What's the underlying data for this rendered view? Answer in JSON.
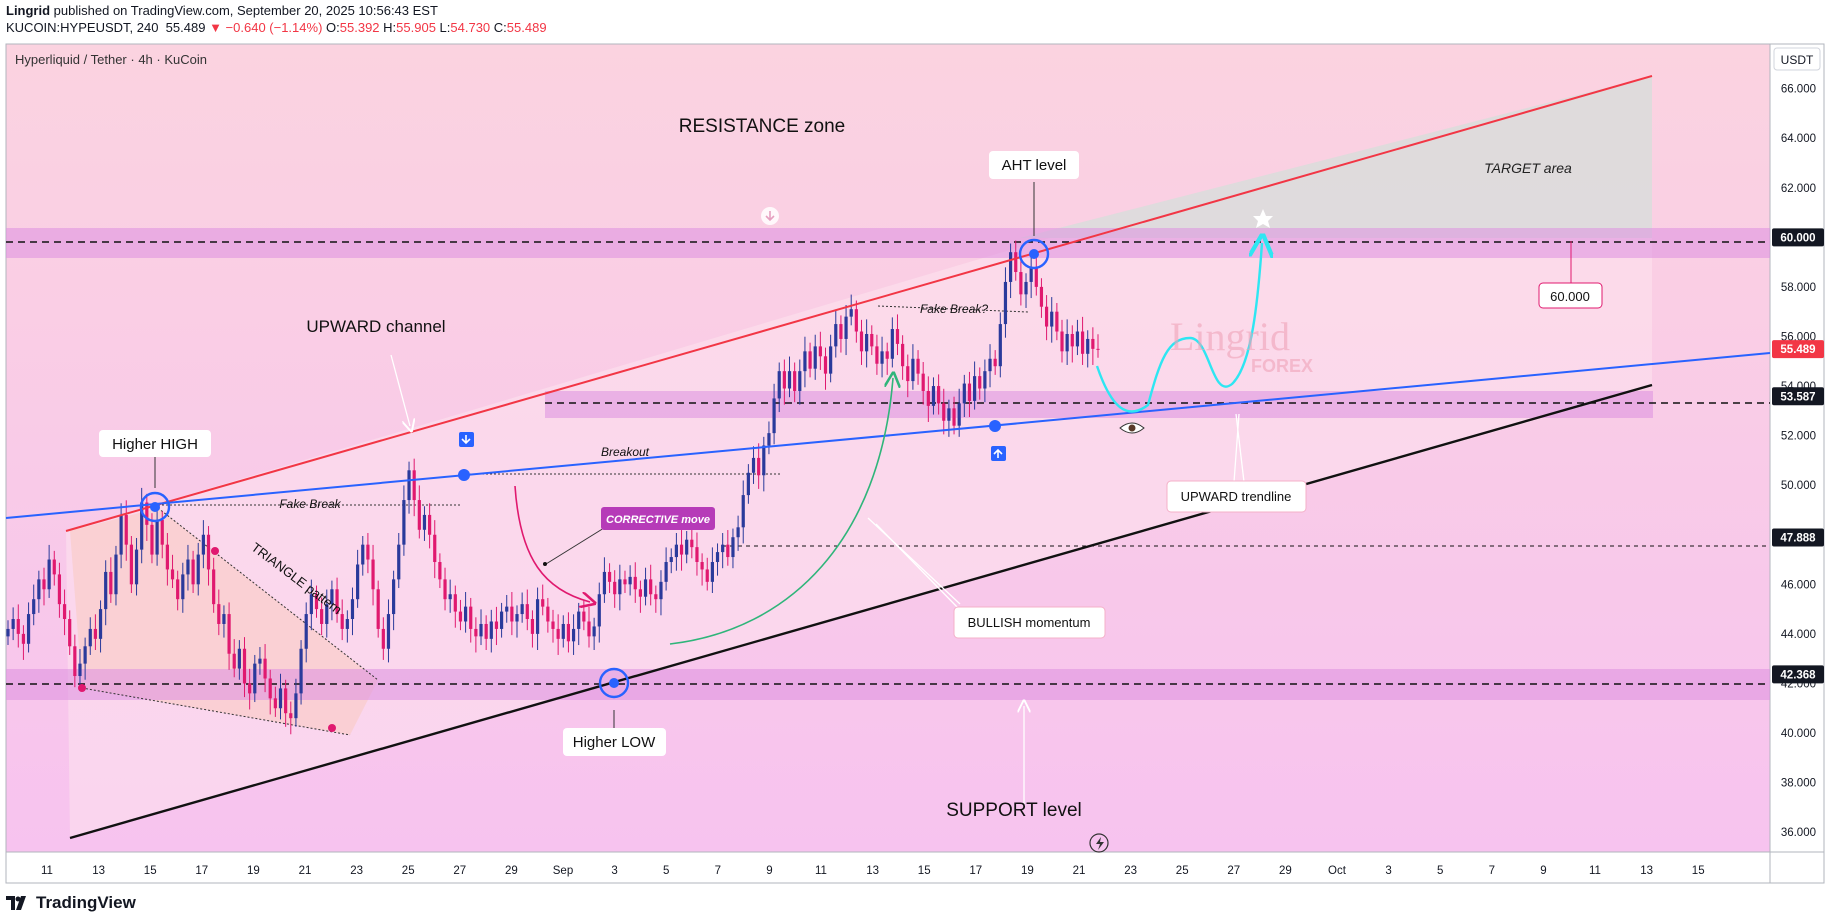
{
  "header": {
    "author": "Lingrid",
    "published": "published on TradingView.com, September 20, 2025 10:56:43 EST",
    "symbol": "KUCOIN:HYPEUSDT, 240",
    "last": "55.489",
    "change": "−0.640 (−1.14%)",
    "o_label": "O:",
    "o": "55.392",
    "h_label": "H:",
    "h": "55.905",
    "l_label": "L:",
    "l": "54.730",
    "c_label": "C:",
    "c": "55.489",
    "legend": "Hyperliquid / Tether · 4h · KuCoin"
  },
  "footer": {
    "brand": "TradingView"
  },
  "colors": {
    "bg_top": "#fbd3e0",
    "bg_bottom": "#f7c3ef",
    "zone": "#dc8fe0",
    "channel_red": "#f23645",
    "trend_blue": "#2962ff",
    "black": "#111111",
    "candle_up": "#2a3a9b",
    "candle_down": "#e0196f",
    "path": "#2ee6f2",
    "green": "#2fb57a"
  },
  "chart_data": {
    "type": "candlestick",
    "title": "Hyperliquid / Tether · 4h · KuCoin",
    "currency": "USDT",
    "ylim": [
      35.2,
      67.8
    ],
    "y_ticks": [
      "66.000",
      "64.000",
      "62.000",
      "60.000",
      "58.000",
      "56.000",
      "54.000",
      "52.000",
      "50.000",
      "48.000",
      "46.000",
      "44.000",
      "42.000",
      "40.000",
      "38.000",
      "36.000"
    ],
    "x_ticks": [
      "11",
      "13",
      "15",
      "17",
      "19",
      "21",
      "23",
      "25",
      "27",
      "29",
      "Sep",
      "3",
      "5",
      "7",
      "9",
      "11",
      "13",
      "15",
      "17",
      "19",
      "21",
      "23",
      "25",
      "27",
      "29",
      "Oct",
      "3",
      "5",
      "7",
      "9",
      "11",
      "13",
      "15"
    ],
    "price_labels": [
      {
        "value": 60.0,
        "text": "60.000"
      },
      {
        "value": 55.489,
        "text": "55.489",
        "current": true
      },
      {
        "value": 53.587,
        "text": "53.587"
      },
      {
        "value": 47.888,
        "text": "47.888"
      },
      {
        "value": 42.368,
        "text": "42.368"
      }
    ],
    "closes": [
      44.2,
      44.6,
      44.0,
      43.6,
      44.8,
      45.4,
      46.2,
      45.8,
      47.0,
      46.4,
      45.2,
      44.6,
      43.5,
      42.3,
      42.8,
      43.5,
      44.2,
      43.8,
      45.0,
      46.5,
      45.6,
      47.2,
      48.8,
      47.6,
      46.0,
      47.4,
      49.3,
      48.4,
      47.2,
      48.6,
      47.6,
      46.6,
      46.2,
      45.4,
      46.4,
      47.0,
      46.0,
      47.2,
      48.0,
      46.6,
      45.2,
      44.4,
      44.8,
      43.2,
      42.6,
      43.4,
      42.0,
      41.6,
      42.8,
      43.0,
      42.2,
      41.4,
      41.0,
      41.8,
      40.8,
      40.6,
      41.6,
      43.4,
      44.8,
      45.6,
      45.0,
      44.4,
      45.2,
      45.8,
      44.8,
      44.2,
      44.6,
      45.4,
      46.8,
      47.6,
      47.0,
      45.8,
      44.2,
      43.4,
      44.8,
      46.2,
      47.6,
      49.4,
      50.6,
      49.4,
      48.2,
      48.8,
      48.0,
      46.9,
      46.2,
      45.4,
      45.6,
      44.9,
      44.5,
      45.1,
      44.2,
      43.9,
      44.4,
      43.8,
      44.5,
      44.2,
      44.9,
      45.1,
      44.5,
      44.8,
      45.2,
      44.6,
      44.0,
      45.4,
      45.1,
      44.5,
      44.2,
      43.8,
      44.4,
      43.7,
      44.2,
      44.9,
      44.5,
      43.9,
      44.3,
      45.6,
      46.5,
      46.1,
      45.6,
      46.2,
      46.0,
      46.3,
      45.8,
      45.5,
      46.2,
      45.6,
      45.4,
      46.1,
      46.9,
      47.1,
      47.6,
      47.2,
      47.8,
      47.5,
      46.9,
      46.6,
      46.1,
      46.9,
      47.3,
      47.6,
      47.1,
      47.9,
      48.3,
      49.6,
      50.5,
      51.1,
      50.4,
      51.6,
      52.1,
      53.5,
      54.6,
      53.9,
      54.6,
      53.8,
      54.6,
      55.4,
      54.7,
      55.6,
      55.2,
      54.5,
      55.6,
      56.5,
      55.9,
      56.8,
      57.1,
      56.2,
      55.4,
      56.1,
      55.6,
      54.9,
      55.4,
      55.1,
      56.3,
      55.7,
      54.8,
      54.2,
      55.1,
      54.5,
      53.8,
      53.2,
      54.0,
      53.3,
      52.6,
      53.1,
      52.4,
      53.3,
      54.1,
      53.4,
      54.4,
      53.9,
      54.6,
      55.1,
      54.8,
      56.5,
      58.2,
      59.4,
      58.6,
      57.7,
      58.2,
      58.8,
      58.0,
      57.2,
      56.4,
      57.0,
      56.2,
      55.4,
      56.1,
      55.6,
      56.2,
      55.3,
      55.9,
      55.5,
      55.489
    ],
    "annotations": {
      "resistance": "RESISTANCE zone",
      "target": "TARGET area",
      "aht": "AHT level",
      "fake_break_q": "Fake Break?",
      "upward_channel": "UPWARD channel",
      "breakout": "Breakout",
      "higher_high": "Higher HIGH",
      "fake_break": "Fake Break",
      "corrective": "CORRECTIVE move",
      "triangle": "TRIANGLE pattern",
      "upward_trendline": "UPWARD trendline",
      "bullish": "BULLISH momentum",
      "higher_low": "Higher LOW",
      "support": "SUPPORT level",
      "target_price": "60.000",
      "wm1": "Lingrid",
      "wm2": "FOREX"
    }
  }
}
